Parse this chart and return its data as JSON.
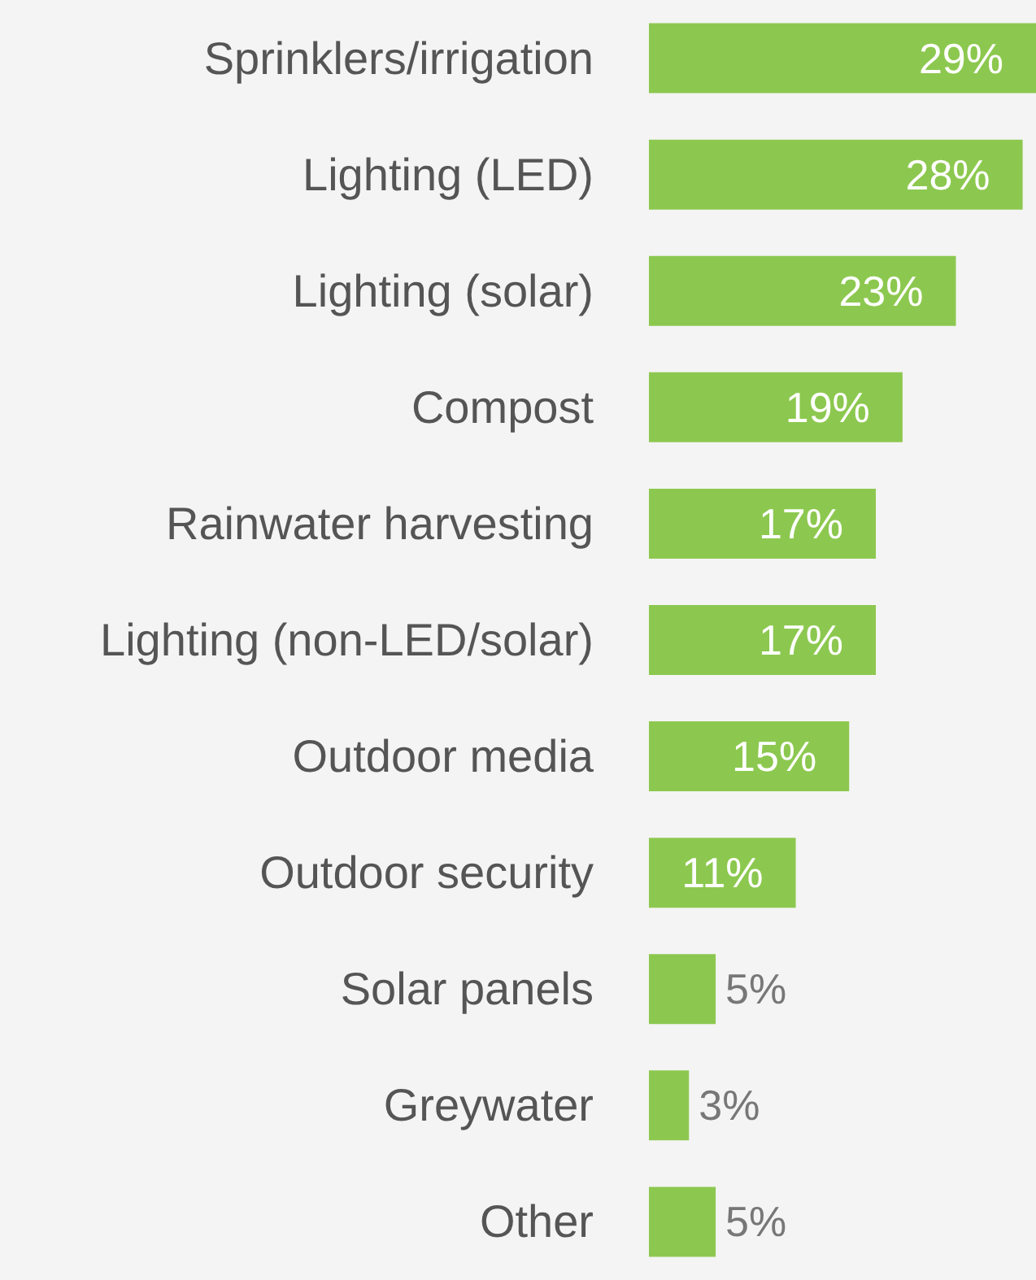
{
  "chart_data": {
    "type": "bar",
    "orientation": "horizontal",
    "categories": [
      "Sprinklers/irrigation",
      "Lighting (LED)",
      "Lighting (solar)",
      "Compost",
      "Rainwater harvesting",
      "Lighting (non-LED/solar)",
      "Outdoor media",
      "Outdoor security",
      "Solar panels",
      "Greywater",
      "Other"
    ],
    "values": [
      29,
      28,
      23,
      19,
      17,
      17,
      15,
      11,
      5,
      3,
      5
    ],
    "color": "#8cc84f",
    "value_labels": [
      "29%",
      "28%",
      "23%",
      "19%",
      "17%",
      "17%",
      "15%",
      "11%",
      "5%",
      "3%",
      "5%"
    ]
  }
}
